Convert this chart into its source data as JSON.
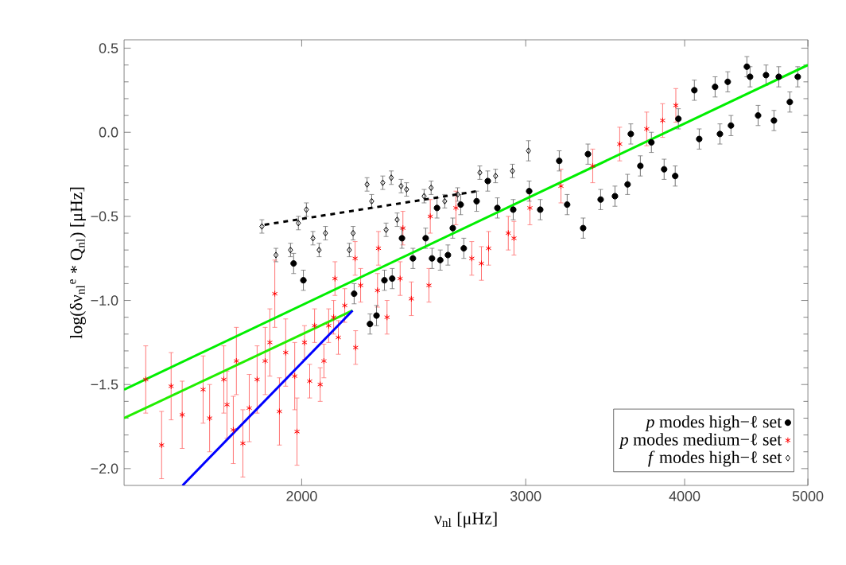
{
  "chart_data": {
    "type": "scatter",
    "xlabel": "ν$_{nl}$ [μHz]",
    "ylabel": "log(δν$_{nl}$$^{e}$ * Q$_{nl}$) [μHz]",
    "log": "x",
    "xlim": [
      1450,
      5000
    ],
    "xticks": [
      2000,
      3000,
      4000,
      5000
    ],
    "ylim": [
      -2.1,
      0.55
    ],
    "yticks": [
      0.5,
      {
        "value": 0,
        "label": "0.0"
      },
      {
        "value": -0.5,
        "label": "−0.5"
      },
      {
        "value": -1.0,
        "label": "−1.0"
      },
      {
        "value": -1.5,
        "label": "−1.5"
      },
      {
        "value": -2.0,
        "label": "−2.0"
      }
    ],
    "legend": "bottom right",
    "series": [
      {
        "name": "*f* modes high−ℓ set",
        "color": "#000000",
        "marker": "diamond",
        "x": [
          1861,
          1909,
          1960,
          1988,
          2017,
          2041,
          2064,
          2088,
          2180,
          2195,
          2251,
          2270,
          2316,
          2330,
          2352,
          2377,
          2394,
          2418,
          2496,
          2528,
          2591,
          2652,
          2761,
          2841,
          2929,
          3015
        ],
        "values": [
          -0.56,
          -0.73,
          -0.7,
          -0.54,
          -0.46,
          -0.63,
          -0.7,
          -0.6,
          -0.7,
          -0.6,
          -0.31,
          -0.41,
          -0.3,
          -0.58,
          -0.27,
          -0.52,
          -0.32,
          -0.34,
          -0.38,
          -0.33,
          -0.41,
          -0.37,
          -0.24,
          -0.26,
          -0.23,
          -0.11
        ],
        "errors": [
          0.04,
          0.04,
          0.04,
          0.04,
          0.04,
          0.04,
          0.04,
          0.04,
          0.04,
          0.04,
          0.04,
          0.04,
          0.04,
          0.04,
          0.04,
          0.04,
          0.04,
          0.04,
          0.04,
          0.04,
          0.04,
          0.04,
          0.04,
          0.04,
          0.04,
          0.06
        ]
      },
      {
        "name": "*p* modes medium−ℓ set",
        "color": "#ff0000",
        "marker": "cross",
        "x": [
          1508,
          1552,
          1579,
          1611,
          1673,
          1693,
          1737,
          1747,
          1767,
          1777,
          1798,
          1819,
          1845,
          1872,
          1888,
          1921,
          1943,
          1905,
          1975,
          1983,
          2010,
          2029,
          2047,
          2068,
          2082,
          2100,
          2119,
          2124,
          2137,
          2162,
          2205,
          2225,
          2203,
          2294,
          2298,
          2334,
          2390,
          2402,
          2439,
          2518,
          2524,
          2644,
          2721,
          2769,
          2805,
          2907,
          2937,
          3023,
          3198,
          3387,
          3557,
          3735,
          3844,
          3937
        ],
        "values": [
          -1.47,
          -1.86,
          -1.51,
          -1.68,
          -1.53,
          -1.7,
          -1.47,
          -1.62,
          -1.77,
          -1.36,
          -1.85,
          -1.64,
          -1.47,
          -1.36,
          -1.25,
          -1.66,
          -1.31,
          -0.96,
          -1.45,
          -1.78,
          -1.25,
          -1.48,
          -1.15,
          -1.5,
          -1.36,
          -1.15,
          -1.1,
          -0.87,
          -1.22,
          -1.03,
          -1.28,
          -0.91,
          -0.75,
          -0.94,
          -0.69,
          -1.1,
          -0.87,
          -0.57,
          -0.99,
          -0.91,
          -0.5,
          -0.45,
          -0.75,
          -0.78,
          -0.69,
          -0.6,
          -0.63,
          -0.45,
          -0.32,
          -0.2,
          -0.07,
          0.02,
          0.07,
          0.16
        ],
        "errors": [
          0.2,
          0.2,
          0.2,
          0.2,
          0.2,
          0.2,
          0.2,
          0.2,
          0.2,
          0.2,
          0.2,
          0.2,
          0.2,
          0.2,
          0.2,
          0.2,
          0.2,
          0.2,
          0.2,
          0.2,
          0.1,
          0.1,
          0.1,
          0.1,
          0.1,
          0.1,
          0.1,
          0.1,
          0.1,
          0.1,
          0.1,
          0.1,
          0.1,
          0.1,
          0.1,
          0.1,
          0.1,
          0.1,
          0.1,
          0.1,
          0.1,
          0.1,
          0.1,
          0.1,
          0.1,
          0.1,
          0.1,
          0.1,
          0.1,
          0.1,
          0.1,
          0.1,
          0.1,
          0.1
        ]
      },
      {
        "name": "*p* modes high−ℓ set",
        "color": "#000000",
        "marker": "circle",
        "x": [
          1971,
          2006,
          2199,
          2263,
          2290,
          2323,
          2356,
          2398,
          2446,
          2503,
          2532,
          2555,
          2570,
          2606,
          2629,
          2667,
          2682,
          2745,
          2801,
          2850,
          2933,
          3019,
          3080,
          3188,
          3234,
          3329,
          3358,
          3436,
          3526,
          3608,
          3629,
          3692,
          3767,
          3855,
          3933,
          3956,
          4071,
          4107,
          4227,
          4264,
          4325,
          4350,
          4477,
          4503,
          4569,
          4635,
          4702,
          4743,
          4839,
          4909
        ],
        "values": [
          -0.78,
          -0.88,
          -0.96,
          -1.14,
          -1.09,
          -0.88,
          -0.87,
          -0.63,
          -0.75,
          -0.63,
          -0.75,
          -0.45,
          -0.76,
          -0.73,
          -0.57,
          -0.43,
          -0.69,
          -0.41,
          -0.29,
          -0.45,
          -0.46,
          -0.35,
          -0.46,
          -0.17,
          -0.43,
          -0.57,
          -0.13,
          -0.4,
          -0.38,
          -0.31,
          -0.01,
          -0.2,
          -0.06,
          -0.22,
          -0.26,
          0.08,
          0.25,
          -0.04,
          0.27,
          -0.01,
          0.3,
          0.04,
          0.39,
          0.33,
          0.1,
          0.34,
          0.07,
          0.33,
          0.18,
          0.33
        ],
        "errors": [
          0.06,
          0.06,
          0.06,
          0.06,
          0.06,
          0.06,
          0.06,
          0.06,
          0.06,
          0.06,
          0.06,
          0.06,
          0.06,
          0.06,
          0.06,
          0.06,
          0.06,
          0.06,
          0.06,
          0.06,
          0.06,
          0.06,
          0.06,
          0.06,
          0.06,
          0.06,
          0.06,
          0.06,
          0.06,
          0.06,
          0.06,
          0.06,
          0.06,
          0.06,
          0.06,
          0.06,
          0.06,
          0.06,
          0.06,
          0.06,
          0.06,
          0.06,
          0.06,
          0.06,
          0.06,
          0.06,
          0.06,
          0.06,
          0.06,
          0.06
        ]
      },
      {
        "type": "line",
        "color": "#00ee00",
        "marker": "none",
        "line_style": "solid",
        "x": [
          1450,
          5000
        ],
        "values": [
          -1.53,
          0.4
        ]
      },
      {
        "type": "line",
        "color": "#22ee00",
        "marker": "none",
        "line_style": "solid",
        "x": [
          1450,
          2193
        ],
        "values": [
          -1.7,
          -1.06
        ]
      },
      {
        "type": "line",
        "color": "#0000ff",
        "marker": "none",
        "line_style": "solid",
        "x": [
          1612,
          2193
        ],
        "values": [
          -2.1,
          -1.06
        ]
      },
      {
        "type": "line",
        "color": "#000000",
        "marker": "none",
        "line_style": "dashed",
        "x": [
          1870,
          2750
        ],
        "values": [
          -0.55,
          -0.35
        ]
      }
    ]
  }
}
